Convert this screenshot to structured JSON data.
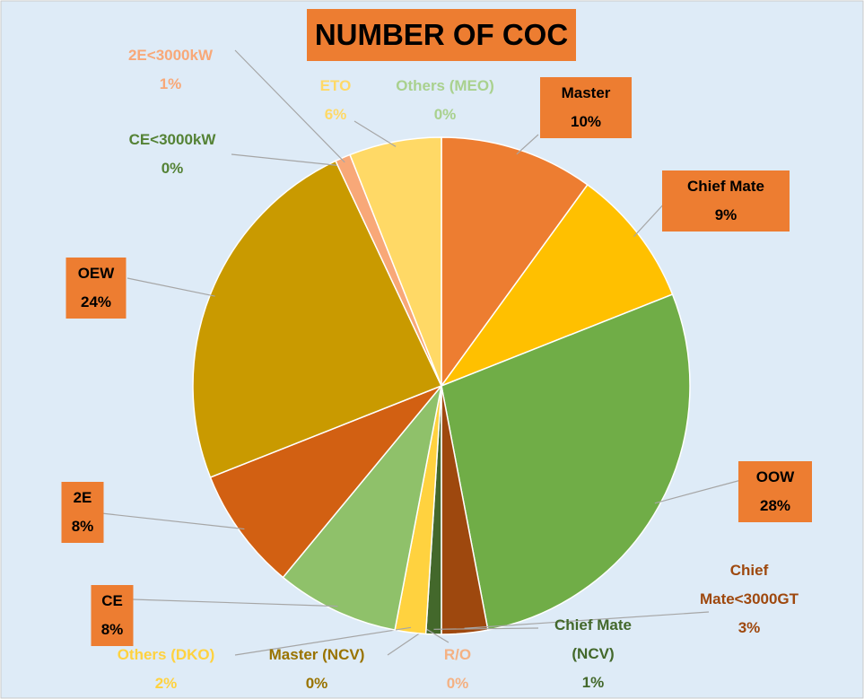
{
  "chart_data": {
    "type": "pie",
    "title": "NUMBER OF COC",
    "categories": [
      "Master",
      "Chief Mate",
      "OOW",
      "Chief Mate<3000GT",
      "Chief Mate (NCV)",
      "R/O",
      "Master (NCV)",
      "Others (DKO)",
      "CE",
      "2E",
      "OEW",
      "CE<3000kW",
      "2E<3000kW",
      "ETO",
      "Others (MEO)"
    ],
    "values": [
      10,
      9,
      28,
      3,
      1,
      0,
      0,
      2,
      8,
      8,
      24,
      0,
      1,
      6,
      0
    ],
    "value_labels": [
      "10%",
      "9%",
      "28%",
      "3%",
      "1%",
      "0%",
      "0%",
      "2%",
      "8%",
      "8%",
      "24%",
      "0%",
      "1%",
      "6%",
      "0%"
    ],
    "colors": [
      "#ED7D31",
      "#FFC000",
      "#70AD47",
      "#9E480E",
      "#43682B",
      "#F4B183",
      "#997300",
      "#FFD23F",
      "#8FC16A",
      "#D26012",
      "#C99A00",
      "#548235",
      "#F8A878",
      "#FFD966",
      "#A9D18E"
    ]
  }
}
